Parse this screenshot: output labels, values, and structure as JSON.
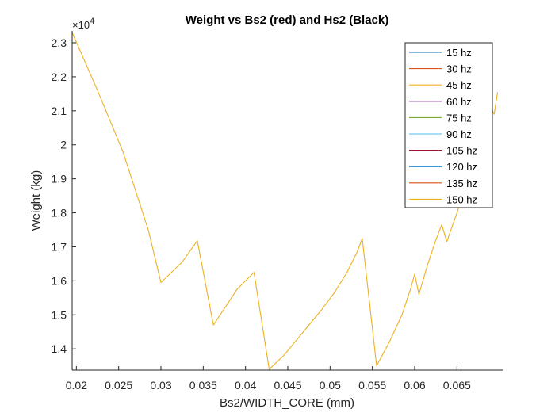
{
  "chart_data": {
    "type": "line",
    "title": "Weight vs Bs2 (red) and Hs2 (Black)",
    "xlabel": "Bs2/WIDTH_CORE (mm)",
    "ylabel": "Weight (kg)",
    "y_exponent_label": "×10",
    "y_exponent": "4",
    "xlim": [
      0.0195,
      0.0705
    ],
    "ylim": [
      1.3375,
      2.335
    ],
    "x_ticks": [
      0.02,
      0.025,
      0.03,
      0.035,
      0.04,
      0.045,
      0.05,
      0.055,
      0.06,
      0.065
    ],
    "x_tick_labels": [
      "0.02",
      "0.025",
      "0.03",
      "0.035",
      "0.04",
      "0.045",
      "0.05",
      "0.055",
      "0.06",
      "0.065"
    ],
    "y_ticks": [
      1.4,
      1.5,
      1.6,
      1.7,
      1.8,
      1.9,
      2.0,
      2.1,
      2.2,
      2.3
    ],
    "y_tick_labels": [
      "1.4",
      "1.5",
      "1.6",
      "1.7",
      "1.8",
      "1.9",
      "2",
      "2.1",
      "2.2",
      "2.3"
    ],
    "grid": false,
    "legend_position": "top-right",
    "series": [
      {
        "name": "15 hz",
        "color": "#0072BD",
        "x": [],
        "y": []
      },
      {
        "name": "30 hz",
        "color": "#D95319",
        "x": [],
        "y": []
      },
      {
        "name": "45 hz",
        "color": "#EDB120",
        "x": [
          0.0195,
          0.0225,
          0.0255,
          0.0285,
          0.03,
          0.0325,
          0.0343,
          0.0362,
          0.039,
          0.041,
          0.0428,
          0.0445,
          0.046,
          0.0475,
          0.049,
          0.0505,
          0.052,
          0.0532,
          0.0538,
          0.0555,
          0.057,
          0.0585,
          0.0595,
          0.06,
          0.0605,
          0.0615,
          0.0625,
          0.0632,
          0.0638,
          0.0645,
          0.0655,
          0.0665,
          0.0672,
          0.0677,
          0.068,
          0.0685,
          0.0687,
          0.069,
          0.0694,
          0.0698
        ],
        "y": [
          2.33,
          2.16,
          1.98,
          1.75,
          1.595,
          1.655,
          1.718,
          1.47,
          1.575,
          1.625,
          1.34,
          1.38,
          1.425,
          1.47,
          1.515,
          1.565,
          1.625,
          1.685,
          1.725,
          1.35,
          1.42,
          1.5,
          1.575,
          1.62,
          1.56,
          1.645,
          1.72,
          1.765,
          1.715,
          1.765,
          1.835,
          1.925,
          1.985,
          2.035,
          2.065,
          2.105,
          2.14,
          2.11,
          2.09,
          2.155
        ]
      },
      {
        "name": "60 hz",
        "color": "#7E2F8E",
        "x": [],
        "y": []
      },
      {
        "name": "75 hz",
        "color": "#77AC30",
        "x": [],
        "y": []
      },
      {
        "name": "90 hz",
        "color": "#4DBEEE",
        "x": [],
        "y": []
      },
      {
        "name": "105 hz",
        "color": "#A2142F",
        "x": [],
        "y": []
      },
      {
        "name": "120 hz",
        "color": "#0072BD",
        "x": [],
        "y": []
      },
      {
        "name": "135 hz",
        "color": "#D95319",
        "x": [],
        "y": []
      },
      {
        "name": "150 hz",
        "color": "#EDB120",
        "x": [],
        "y": []
      }
    ]
  }
}
